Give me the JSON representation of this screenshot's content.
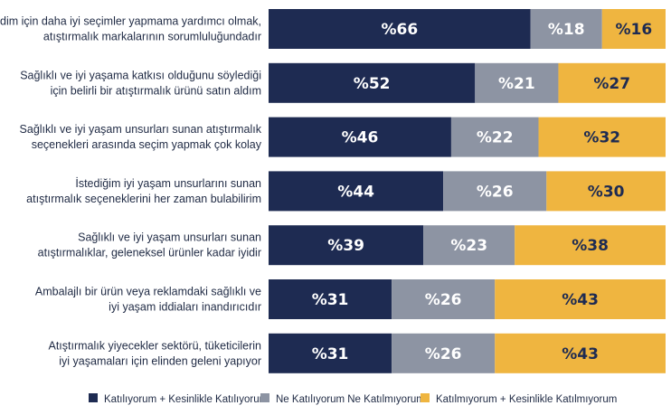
{
  "chart_data": {
    "type": "bar",
    "stacked": true,
    "orientation": "horizontal",
    "value_prefix": "%",
    "xlim": [
      0,
      100
    ],
    "grid": false,
    "legend_position": "bottom",
    "categories": [
      [
        "Kendim için daha iyi seçimler yapmama yardımcı olmak,",
        "atıştırmalık markalarının sorumluluğundadır"
      ],
      [
        "Sağlıklı ve iyi yaşama katkısı olduğunu söylediği",
        "için belirli bir atıştırmalık ürünü satın aldım"
      ],
      [
        "Sağlıklı ve iyi yaşam unsurları sunan atıştırmalık",
        "seçenekleri arasında seçim yapmak çok kolay"
      ],
      [
        "İstediğim iyi yaşam unsurlarını sunan",
        "atıştırmalık seçeneklerini her zaman bulabilirim"
      ],
      [
        "Sağlıklı ve iyi yaşam unsurları sunan",
        "atıştırmalıklar, geleneksel ürünler kadar iyidir"
      ],
      [
        "Ambalajlı bir ürün veya reklamdaki sağlıklı ve",
        "iyi yaşam iddiaları inandırıcıdır"
      ],
      [
        "Atıştırmalık yiyecekler sektörü, tüketicilerin",
        "iyi yaşamaları için elinden geleni yapıyor"
      ]
    ],
    "series": [
      {
        "name": "Katılıyorum + Kesinlikle Katılıyorum",
        "color": "#1e2b52",
        "text_color": "#ffffff",
        "values": [
          66,
          52,
          46,
          44,
          39,
          31,
          31
        ]
      },
      {
        "name": "Ne Katılıyorum Ne Katılmıyorum",
        "color": "#8d94a3",
        "text_color": "#ffffff",
        "values": [
          18,
          21,
          22,
          26,
          23,
          26,
          26
        ]
      },
      {
        "name": "Katılmıyorum + Kesinlikle Katılmıyorum",
        "color": "#efb540",
        "text_color": "#1e2b52",
        "values": [
          16,
          27,
          32,
          30,
          38,
          43,
          43
        ]
      }
    ]
  }
}
